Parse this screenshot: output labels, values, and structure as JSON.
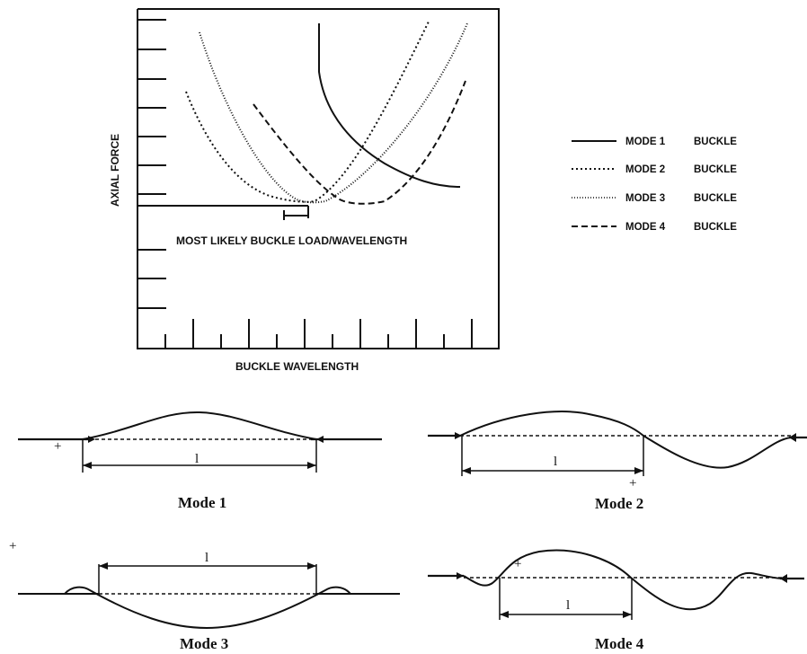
{
  "chart": {
    "ylabel": "AXIAL FORCE",
    "xlabel": "BUCKLE WAVELENGTH",
    "annotation": "MOST LIKELY BUCKLE LOAD/WAVELENGTH"
  },
  "legend": [
    {
      "label": "MODE 1",
      "word": "BUCKLE",
      "style": "solid"
    },
    {
      "label": "MODE 2",
      "word": "BUCKLE",
      "style": "dotted"
    },
    {
      "label": "MODE 3",
      "word": "BUCKLE",
      "style": "fine-dotted"
    },
    {
      "label": "MODE 4",
      "word": "BUCKLE",
      "style": "dashed"
    }
  ],
  "modes": {
    "m1": {
      "title": "Mode 1",
      "length": "l"
    },
    "m2": {
      "title": "Mode 2",
      "length": "l"
    },
    "m3": {
      "title": "Mode 3",
      "length": "l"
    },
    "m4": {
      "title": "Mode 4",
      "length": "l"
    }
  },
  "marks": {
    "plus": "+"
  }
}
